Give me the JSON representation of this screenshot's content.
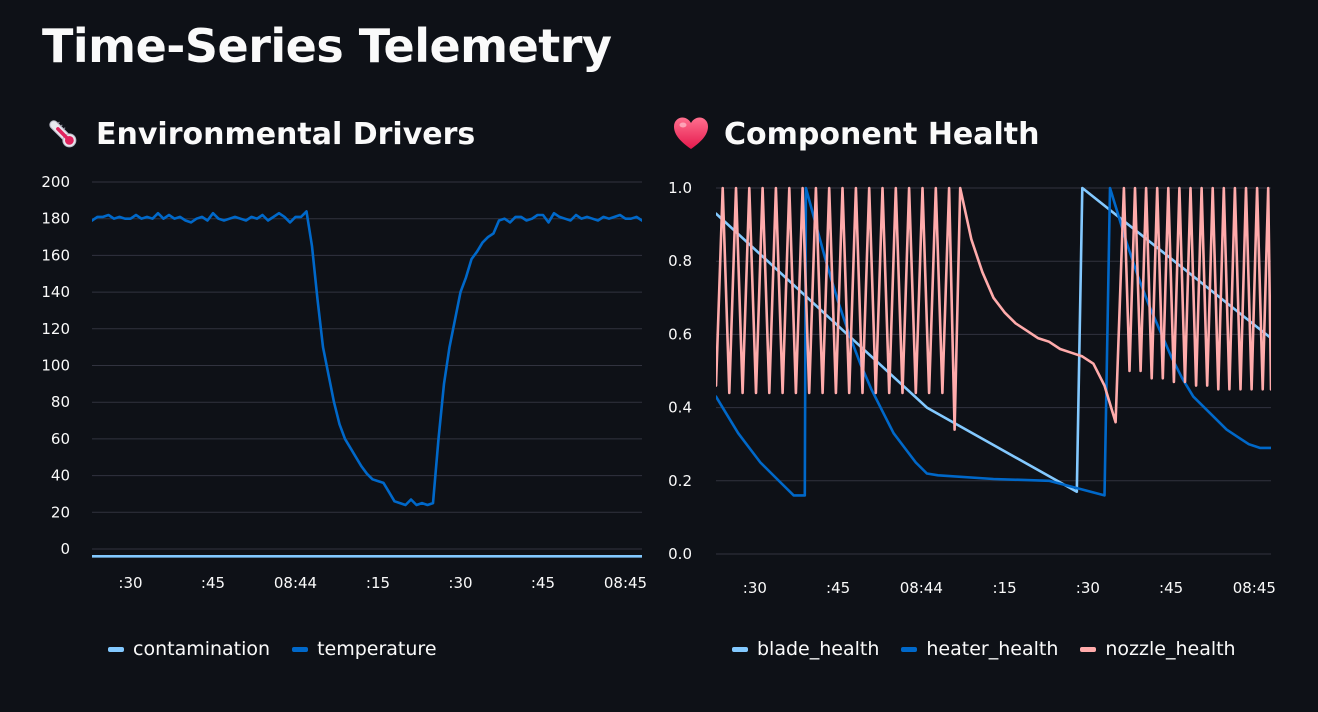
{
  "page": {
    "title": "Time-Series Telemetry"
  },
  "icons": {
    "left": "thermometer-icon",
    "right": "heart-icon"
  },
  "chart_data": [
    {
      "type": "line",
      "title": "Environmental Drivers",
      "xlabel": "",
      "ylabel": "",
      "ylim": [
        0,
        200
      ],
      "y_ticks": [
        "0",
        "20",
        "40",
        "60",
        "80",
        "100",
        "120",
        "140",
        "160",
        "180",
        "200"
      ],
      "x_tick_labels": [
        ":30",
        ":45",
        "08:44",
        ":15",
        ":30",
        ":45",
        "08:45"
      ],
      "x_tick_positions": [
        15,
        30,
        45,
        60,
        75,
        90,
        105
      ],
      "xlim": [
        8,
        108
      ],
      "legend": "bottom",
      "series": [
        {
          "name": "contamination",
          "color": "#83c9ff",
          "x": [
            8,
            48,
            68,
            88,
            108
          ],
          "values": [
            -4,
            -4,
            -4,
            -4,
            -4
          ]
        },
        {
          "name": "temperature",
          "color": "#0068c9",
          "x": [
            8,
            9,
            10,
            11,
            12,
            13,
            14,
            15,
            16,
            17,
            18,
            19,
            20,
            21,
            22,
            23,
            24,
            25,
            26,
            27,
            28,
            29,
            30,
            31,
            32,
            33,
            34,
            35,
            36,
            37,
            38,
            39,
            40,
            41,
            42,
            43,
            44,
            45,
            46,
            47,
            48,
            49,
            50,
            51,
            52,
            53,
            54,
            55,
            56,
            57,
            58,
            59,
            60,
            61,
            62,
            63,
            64,
            65,
            66,
            67,
            68,
            69,
            70,
            71,
            72,
            73,
            74,
            75,
            76,
            77,
            78,
            79,
            80,
            81,
            82,
            83,
            84,
            85,
            86,
            87,
            88,
            89,
            90,
            91,
            92,
            93,
            94,
            95,
            96,
            97,
            98,
            99,
            100,
            101,
            102,
            103,
            104,
            105,
            106,
            107,
            108
          ],
          "values": [
            179,
            181,
            181,
            182,
            180,
            181,
            180,
            180,
            182,
            180,
            181,
            180,
            183,
            180,
            182,
            180,
            181,
            179,
            178,
            180,
            181,
            179,
            183,
            180,
            179,
            180,
            181,
            180,
            179,
            181,
            180,
            182,
            179,
            181,
            183,
            181,
            178,
            181,
            181,
            184,
            165,
            136,
            110,
            95,
            80,
            68,
            60,
            55,
            50,
            45,
            41,
            38,
            37,
            36,
            31,
            26,
            25,
            24,
            27,
            24,
            25,
            24,
            25,
            60,
            90,
            110,
            125,
            140,
            148,
            158,
            162,
            167,
            170,
            172,
            179,
            180,
            178,
            181,
            181,
            179,
            180,
            182,
            182,
            178,
            183,
            181,
            180,
            179,
            182,
            180,
            181,
            180,
            179,
            181,
            180,
            181,
            182,
            180,
            180,
            181,
            179
          ]
        }
      ]
    },
    {
      "type": "line",
      "title": "Component Health",
      "xlabel": "",
      "ylabel": "",
      "ylim": [
        0,
        1.0
      ],
      "y_ticks": [
        "0.0",
        "0.2",
        "0.4",
        "0.6",
        "0.8",
        "1.0"
      ],
      "x_tick_labels": [
        ":30",
        ":45",
        "08:44",
        ":15",
        ":30",
        ":45",
        "08:45"
      ],
      "x_tick_positions": [
        15,
        30,
        45,
        60,
        75,
        90,
        105
      ],
      "xlim": [
        8,
        108
      ],
      "legend": "bottom",
      "series": [
        {
          "name": "blade_health",
          "color": "#83c9ff",
          "x": [
            8,
            46,
            73,
            74,
            108
          ],
          "values": [
            0.93,
            0.4,
            0.17,
            1.0,
            0.59
          ]
        },
        {
          "name": "heater_health",
          "color": "#0068c9",
          "x": [
            8,
            10,
            12,
            14,
            16,
            18,
            20,
            22,
            24,
            24.2,
            26,
            28,
            30,
            32,
            34,
            36,
            38,
            40,
            42,
            44,
            46,
            48,
            58,
            68,
            78,
            79,
            80,
            82,
            84,
            86,
            88,
            90,
            92,
            94,
            96,
            98,
            100,
            102,
            104,
            106,
            108
          ],
          "values": [
            0.43,
            0.38,
            0.33,
            0.29,
            0.25,
            0.22,
            0.19,
            0.16,
            0.16,
            1.0,
            0.9,
            0.79,
            0.69,
            0.6,
            0.52,
            0.45,
            0.39,
            0.33,
            0.29,
            0.25,
            0.22,
            0.215,
            0.205,
            0.2,
            0.16,
            1.0,
            0.95,
            0.85,
            0.76,
            0.68,
            0.61,
            0.54,
            0.48,
            0.43,
            0.4,
            0.37,
            0.34,
            0.32,
            0.3,
            0.29,
            0.29
          ]
        },
        {
          "name": "nozzle_health",
          "color": "#ffabab",
          "x": [
            8,
            9.2,
            10.4,
            11.6,
            12.8,
            14,
            15.2,
            16.4,
            17.6,
            18.8,
            20,
            21.2,
            22.4,
            23.6,
            24.8,
            26,
            27.2,
            28.4,
            29.6,
            30.8,
            32,
            33.2,
            34.4,
            35.6,
            36.8,
            38,
            39.2,
            40.4,
            41.6,
            42.8,
            44,
            45.2,
            46.4,
            47.6,
            48.8,
            50,
            51,
            52,
            54,
            56,
            58,
            60,
            62,
            64,
            66,
            68,
            70,
            72,
            74,
            76,
            78,
            80,
            81.5,
            82.5,
            83.5,
            84.5,
            85.5,
            86.5,
            87.5,
            88.5,
            89.5,
            90.5,
            91.5,
            92.5,
            93.5,
            94.5,
            95.5,
            96.5,
            97.5,
            98.5,
            99.5,
            100.5,
            101.5,
            102.5,
            103.5,
            104.5,
            105.5,
            106.5,
            107.5,
            108
          ],
          "values": [
            0.46,
            1.0,
            0.44,
            1.0,
            0.44,
            1.0,
            0.44,
            1.0,
            0.44,
            1.0,
            0.44,
            1.0,
            0.44,
            1.0,
            0.44,
            1.0,
            0.44,
            1.0,
            0.44,
            1.0,
            0.44,
            1.0,
            0.44,
            1.0,
            0.44,
            1.0,
            0.44,
            1.0,
            0.44,
            1.0,
            0.44,
            1.0,
            0.44,
            1.0,
            0.44,
            1.0,
            0.34,
            1.0,
            0.86,
            0.77,
            0.7,
            0.66,
            0.63,
            0.61,
            0.59,
            0.58,
            0.56,
            0.55,
            0.54,
            0.52,
            0.46,
            0.36,
            1.0,
            0.5,
            1.0,
            0.5,
            1.0,
            0.48,
            1.0,
            0.48,
            1.0,
            0.47,
            1.0,
            0.47,
            1.0,
            0.46,
            1.0,
            0.46,
            1.0,
            0.45,
            1.0,
            0.45,
            1.0,
            0.45,
            1.0,
            0.45,
            1.0,
            0.45,
            1.0,
            0.45
          ]
        }
      ]
    }
  ]
}
